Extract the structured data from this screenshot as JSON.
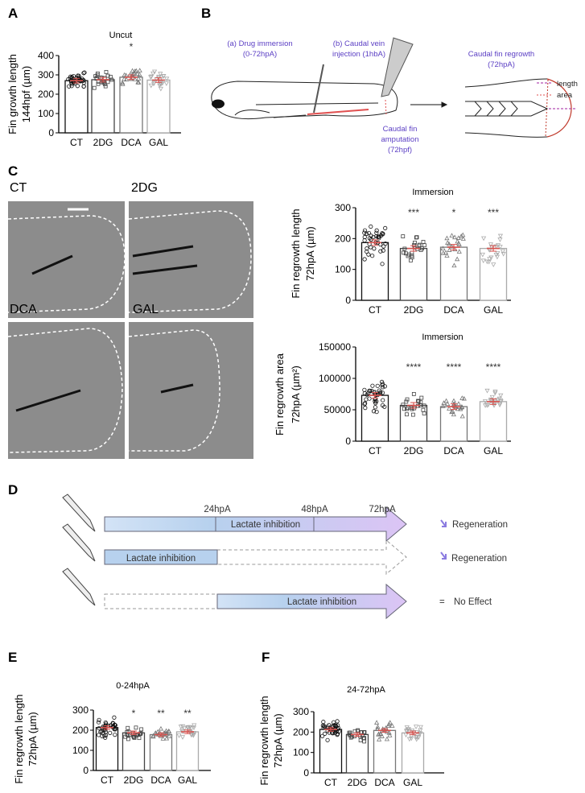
{
  "panels": {
    "A": "A",
    "B": "B",
    "C": "C",
    "D": "D",
    "E": "E",
    "F": "F"
  },
  "colors": {
    "mean_sem": "#d9534f",
    "CT": "#111111",
    "2DG": "#444444",
    "DCA": "#777777",
    "GAL": "#aaaaaa",
    "text_purple": "#5b3fc4",
    "timeline_start": "#bcd4ef",
    "timeline_end": "#dcc4f5"
  },
  "panel_b": {
    "drug_immersion": [
      "(a) Drug immersion",
      "(0-72hpA)"
    ],
    "vein_injection": [
      "(b) Caudal vein",
      "injection (1hbA)"
    ],
    "amputation": [
      "Caudal fin",
      "amputation",
      "(72hpf)"
    ],
    "regrowth": [
      "Caudal fin regrowth",
      "(72hpA)"
    ],
    "legend_length": "length",
    "legend_area": "area"
  },
  "panel_c_images": [
    {
      "label": "CT",
      "has_scale_bar": true
    },
    {
      "label": "2DG"
    },
    {
      "label": "DCA"
    },
    {
      "label": "GAL"
    }
  ],
  "panel_d": {
    "timepoints": [
      "24hpA",
      "48hpA",
      "72hpA"
    ],
    "rows": [
      {
        "treatment": "Lactate inhibition",
        "window": "0-72hpA",
        "outcome_icon": "down-arrow-icon",
        "outcome": "Regeneration"
      },
      {
        "treatment": "Lactate inhibition",
        "window": "0-24hpA",
        "outcome_icon": "down-arrow-icon",
        "outcome": "Regeneration"
      },
      {
        "treatment": "Lactate inhibition",
        "window": "24-72hpA",
        "outcome_icon": "equals-icon",
        "outcome_symbol": "=",
        "outcome": "No Effect"
      }
    ]
  },
  "chart_data": [
    {
      "id": "A",
      "type": "bar",
      "title": "Uncut",
      "ylabel": [
        "Fin growth length",
        "144hpf (µm)"
      ],
      "categories": [
        "CT",
        "2DG",
        "DCA",
        "GAL"
      ],
      "values": [
        270,
        275,
        288,
        273
      ],
      "significance": [
        "",
        "",
        "*",
        ""
      ],
      "ylim": [
        0,
        400
      ],
      "yticks": [
        "0",
        "100",
        "200",
        "300",
        "400"
      ],
      "grid": false,
      "markers": [
        "circle",
        "square",
        "triangle",
        "triangle-down"
      ]
    },
    {
      "id": "C1",
      "type": "bar",
      "title": "Immersion",
      "ylabel": [
        "Fin regrowth length",
        "72hpA (µm)"
      ],
      "categories": [
        "CT",
        "2DG",
        "DCA",
        "GAL"
      ],
      "values": [
        187,
        168,
        172,
        168
      ],
      "significance": [
        "",
        "***",
        "*",
        "***"
      ],
      "ylim": [
        0,
        300
      ],
      "yticks": [
        "0",
        "100",
        "200",
        "300"
      ],
      "grid": false,
      "markers": [
        "circle",
        "square",
        "triangle",
        "triangle-down"
      ]
    },
    {
      "id": "C2",
      "type": "bar",
      "title": "Immersion",
      "ylabel": [
        "Fin regrowth area",
        "72hpA (µm²)"
      ],
      "categories": [
        "CT",
        "2DG",
        "DCA",
        "GAL"
      ],
      "values": [
        73000,
        57000,
        55000,
        63000
      ],
      "significance": [
        "",
        "****",
        "****",
        "****"
      ],
      "ylim": [
        0,
        150000
      ],
      "yticks": [
        "0",
        "50000",
        "100000",
        "150000"
      ],
      "grid": false,
      "markers": [
        "circle",
        "square",
        "triangle",
        "triangle-down"
      ]
    },
    {
      "id": "E",
      "type": "bar",
      "title": "0-24hpA",
      "ylabel": [
        "Fin regrowth length",
        "72hpA (µm)"
      ],
      "categories": [
        "CT",
        "2DG",
        "DCA",
        "GAL"
      ],
      "values": [
        213,
        187,
        178,
        192
      ],
      "significance": [
        "",
        "*",
        "**",
        "**"
      ],
      "ylim": [
        0,
        300
      ],
      "yticks": [
        "0",
        "100",
        "200",
        "300"
      ],
      "grid": false,
      "markers": [
        "circle",
        "square",
        "triangle",
        "triangle-down"
      ]
    },
    {
      "id": "F",
      "type": "bar",
      "title": "24-72hpA",
      "ylabel": [
        "Fin regrowth length",
        "72hpA (µm)"
      ],
      "categories": [
        "CT",
        "2DG",
        "DCA",
        "GAL"
      ],
      "values": [
        213,
        188,
        208,
        196
      ],
      "significance": [
        "",
        "",
        "",
        ""
      ],
      "ylim": [
        0,
        300
      ],
      "yticks": [
        "0",
        "100",
        "200",
        "300"
      ],
      "grid": false,
      "markers": [
        "circle",
        "square",
        "triangle",
        "triangle-down"
      ]
    }
  ]
}
